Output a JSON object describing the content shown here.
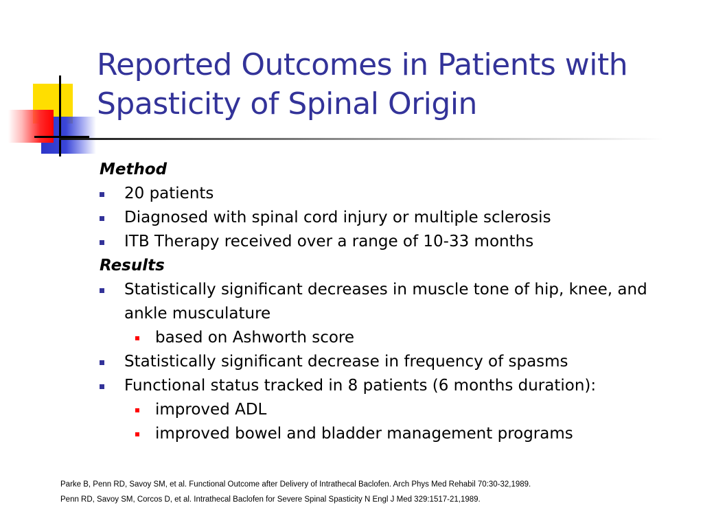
{
  "slide": {
    "title": "Reported Outcomes in Patients with Spasticity of Spinal Origin",
    "colors": {
      "title": "#333399",
      "bullet_primary": "#333399",
      "bullet_secondary": "#ff0000"
    }
  },
  "method": {
    "heading": "Method",
    "items": [
      "20 patients",
      "Diagnosed with spinal cord injury or multiple sclerosis",
      "ITB Therapy received over a range of 10-33 months"
    ]
  },
  "results": {
    "heading": "Results",
    "item1": "Statistically significant decreases in muscle tone of hip, knee, and ankle musculature",
    "item1_sub": "based on Ashworth score",
    "item2": "Statistically significant decrease in frequency of spasms",
    "item3": "Functional status tracked in 8 patients (6 months duration):",
    "item3_subs": [
      "improved ADL",
      "improved bowel and bladder management programs"
    ]
  },
  "references": [
    "Parke B, Penn RD, Savoy SM, et al.  Functional Outcome after Delivery of Intrathecal Baclofen.  Arch Phys Med Rehabil 70:30-32,1989.",
    "Penn RD, Savoy SM, Corcos D, et al.  Intrathecal Baclofen for Severe Spinal Spasticity N Engl J Med 329:1517-21,1989."
  ]
}
